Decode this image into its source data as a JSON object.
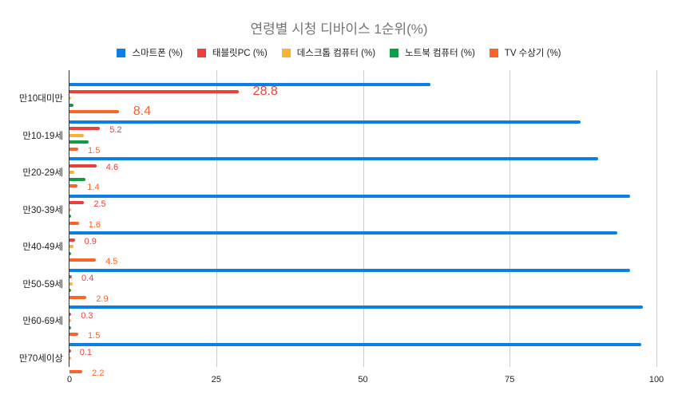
{
  "chart_data": {
    "type": "bar",
    "orientation": "horizontal",
    "title": "연령별 시청 디바이스 1순위(%)",
    "xlabel": "",
    "ylabel": "",
    "xlim": [
      0,
      100
    ],
    "xticks": [
      "0",
      "25",
      "50",
      "75",
      "100"
    ],
    "grid": true,
    "legend_position": "top",
    "categories": [
      "만10대미만",
      "만10-19세",
      "만20-29세",
      "만30-39세",
      "만40-49세",
      "만50-59세",
      "만60-69세",
      "만70세이상"
    ],
    "series": [
      {
        "name": "스마트폰 (%)",
        "color": "#0b7fe5",
        "values": [
          61.5,
          87.1,
          90.1,
          95.5,
          93.3,
          95.5,
          97.7,
          97.4
        ]
      },
      {
        "name": "태블릿PC (%)",
        "color": "#ea3f3b",
        "values": [
          28.8,
          5.2,
          4.6,
          2.5,
          0.9,
          0.4,
          0.3,
          0.1
        ]
      },
      {
        "name": "데스크톱 컴퓨터 (%)",
        "color": "#fbb234",
        "values": [
          0.3,
          2.4,
          0.8,
          0.1,
          0.7,
          0.5,
          0.1,
          0.2
        ]
      },
      {
        "name": "노트북 컴퓨터 (%)",
        "color": "#0f9d48",
        "values": [
          0.7,
          3.3,
          2.7,
          0.1,
          0.2,
          0.3,
          0.1,
          0.0
        ]
      },
      {
        "name": "TV 수상기 (%)",
        "color": "#fb6428",
        "values": [
          8.4,
          1.5,
          1.4,
          1.6,
          4.5,
          2.9,
          1.5,
          2.2
        ]
      }
    ],
    "data_labels": {
      "태블릿PC (%)": [
        "28.8",
        "5.2",
        "4.6",
        "2.5",
        "0.9",
        "0.4",
        "0.3",
        "0.1"
      ],
      "TV 수상기 (%)": [
        "8.4",
        "1.5",
        "1.4",
        "1.6",
        "4.5",
        "2.9",
        "1.5",
        "2.2"
      ]
    }
  },
  "legend": {
    "items": [
      {
        "label": "스마트폰 (%)",
        "color": "#0b7fe5"
      },
      {
        "label": "태블릿PC (%)",
        "color": "#ea3f3b"
      },
      {
        "label": "데스크톱 컴퓨터 (%)",
        "color": "#fbb234"
      },
      {
        "label": "노트북 컴퓨터 (%)",
        "color": "#0f9d48"
      },
      {
        "label": "TV 수상기 (%)",
        "color": "#fb6428"
      }
    ]
  }
}
